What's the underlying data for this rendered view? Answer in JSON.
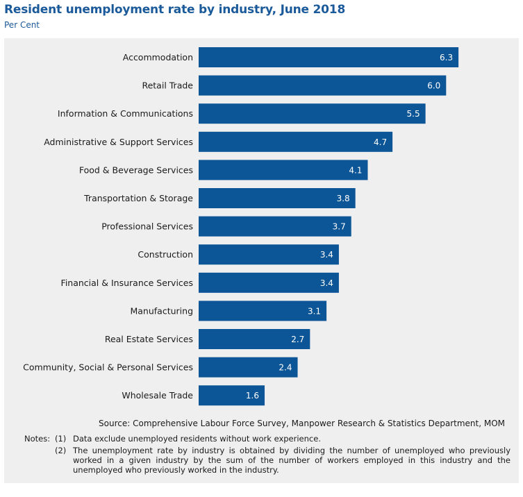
{
  "title": "Resident unemployment rate by industry, June 2018",
  "subtitle": "Per Cent",
  "colors": {
    "bar": "#0c5596",
    "title": "#1b5a9a",
    "panel": "#efefef"
  },
  "chart_data": {
    "type": "bar",
    "orientation": "horizontal",
    "categories": [
      "Accommodation",
      "Retail Trade",
      "Information & Communications",
      "Administrative & Support Services",
      "Food & Beverage Services",
      "Transportation & Storage",
      "Professional Services",
      "Construction",
      "Financial & Insurance Services",
      "Manufacturing",
      "Real Estate Services",
      "Community, Social & Personal Services",
      "Wholesale Trade"
    ],
    "values": [
      6.3,
      6.0,
      5.5,
      4.7,
      4.1,
      3.8,
      3.7,
      3.4,
      3.4,
      3.1,
      2.7,
      2.4,
      1.6
    ],
    "value_labels": [
      "6.3",
      "6.0",
      "5.5",
      "4.7",
      "4.1",
      "3.8",
      "3.7",
      "3.4",
      "3.4",
      "3.1",
      "2.7",
      "2.4",
      "1.6"
    ],
    "xlim": [
      0,
      6.5
    ],
    "grid": false,
    "legend": "none"
  },
  "source": "Source: Comprehensive Labour Force Survey, Manpower Research & Statistics Department, MOM",
  "notes": {
    "label": "Notes:",
    "items": [
      {
        "num": "(1)",
        "text": "Data exclude unemployed residents without work experience."
      },
      {
        "num": "(2)",
        "text": "The unemployment rate by industry is obtained by dividing the number of unemployed who previously worked in a given industry by the sum of the number of workers employed in this industry and the unemployed who previously worked in the industry."
      }
    ]
  }
}
